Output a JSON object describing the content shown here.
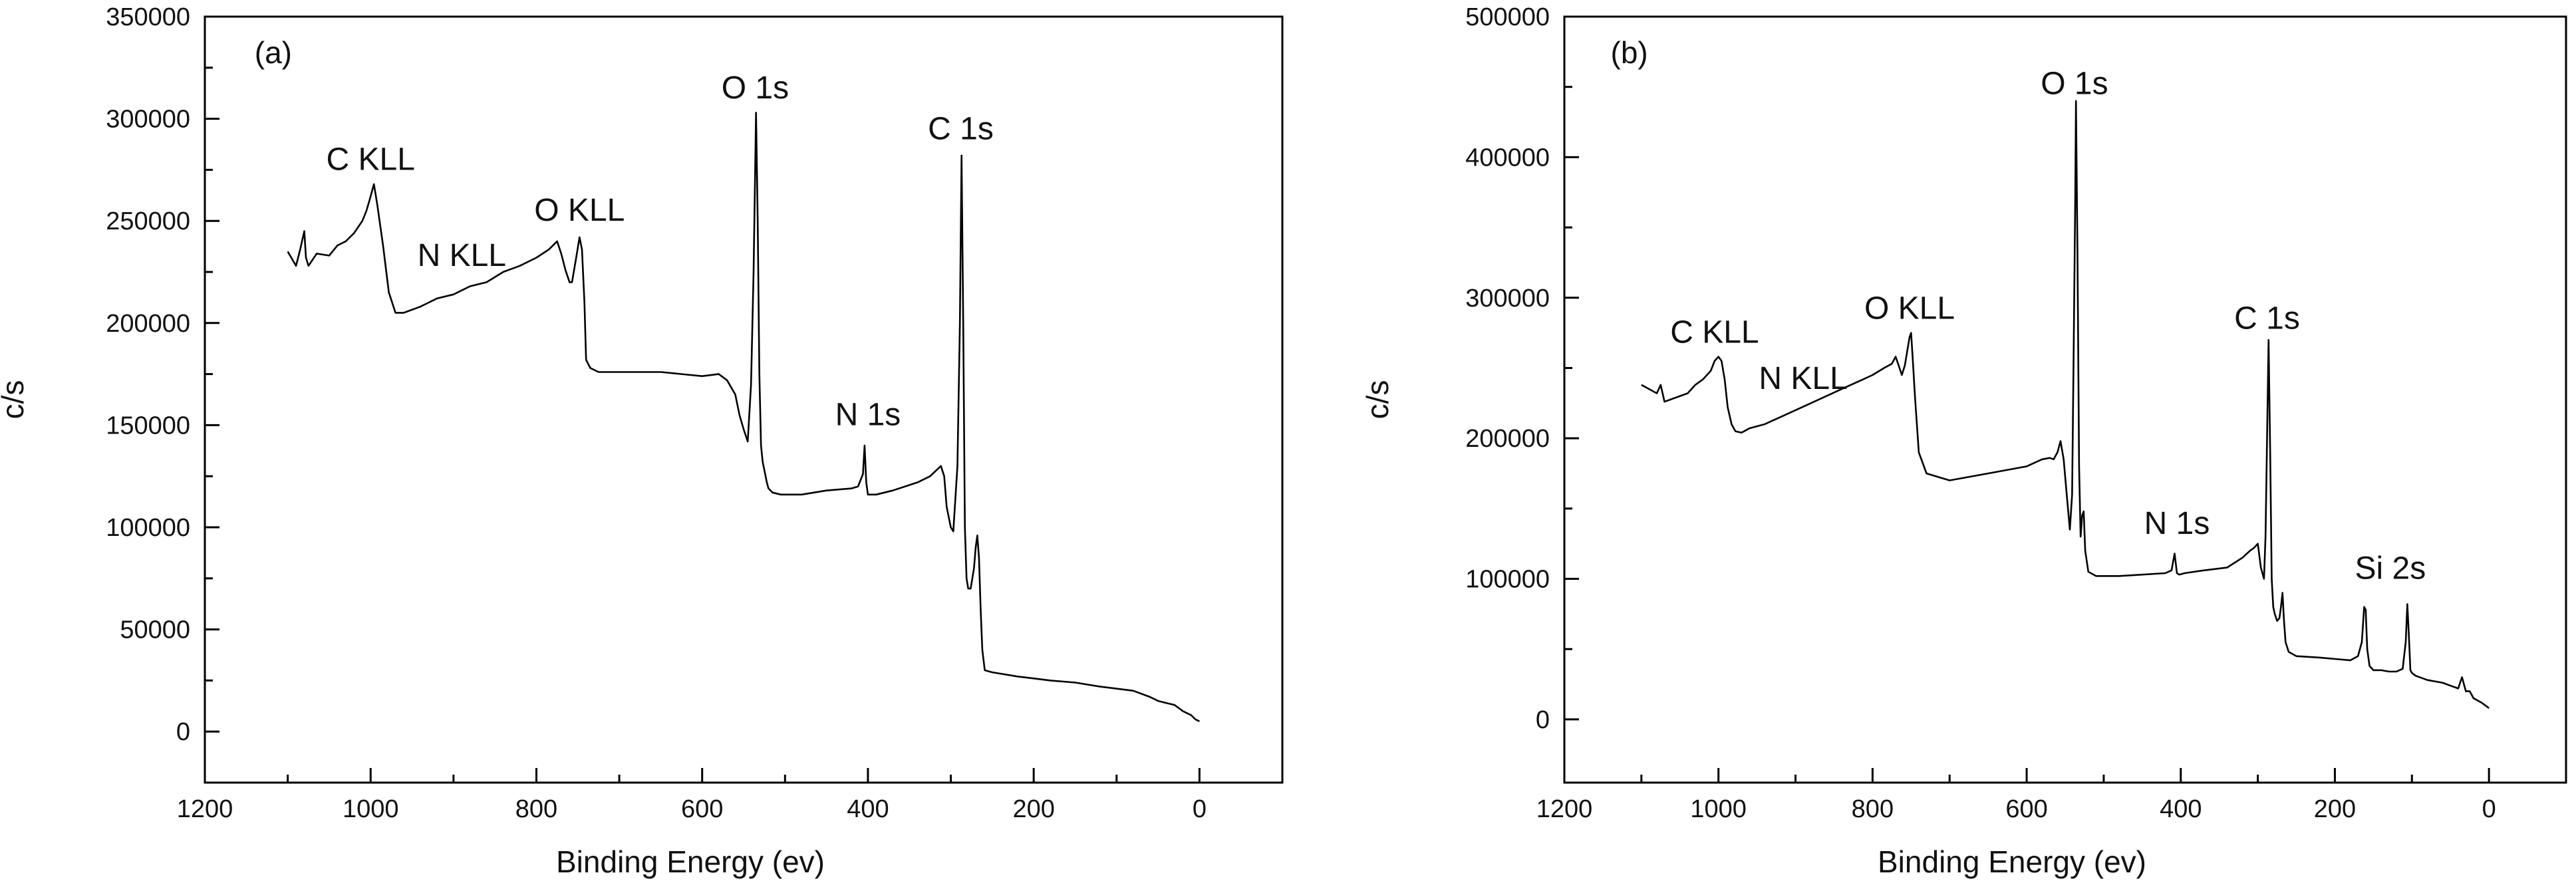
{
  "chart_data": [
    {
      "type": "line",
      "panel_label": "(a)",
      "xlabel": "Binding Energy (ev)",
      "ylabel": "c/s",
      "xlim": [
        1200,
        -100
      ],
      "ylim": [
        -25000,
        350000
      ],
      "xticks": [
        1200,
        1000,
        800,
        600,
        400,
        200,
        0
      ],
      "yticks": [
        0,
        50000,
        100000,
        150000,
        200000,
        250000,
        300000,
        350000
      ],
      "grid": false,
      "series": [
        {
          "x": [
            1100,
            1090,
            1085,
            1080,
            1078,
            1075,
            1065,
            1050,
            1040,
            1030,
            1020,
            1010,
            1005,
            1000,
            996,
            992,
            985,
            978,
            970,
            960,
            940,
            920,
            900,
            880,
            860,
            840,
            820,
            800,
            785,
            775,
            770,
            765,
            760,
            757,
            752,
            748,
            745,
            742,
            740,
            735,
            725,
            700,
            650,
            600,
            580,
            570,
            560,
            555,
            550,
            545,
            541,
            538,
            536,
            535,
            533,
            531,
            529,
            527,
            525,
            522,
            520,
            515,
            505,
            480,
            450,
            420,
            412,
            406,
            404,
            402,
            400,
            397,
            390,
            370,
            340,
            325,
            312,
            308,
            305,
            300,
            297,
            292,
            289,
            287,
            285,
            283,
            281,
            279,
            276,
            272,
            270,
            268,
            266,
            264,
            262,
            259,
            250,
            220,
            200,
            180,
            150,
            120,
            100,
            80,
            60,
            50,
            40,
            30,
            20,
            10,
            5,
            0
          ],
          "values": [
            235000,
            228000,
            236000,
            245000,
            232000,
            228000,
            234000,
            233000,
            238000,
            240000,
            244000,
            250000,
            255000,
            262000,
            268000,
            258000,
            238000,
            215000,
            205000,
            205000,
            208000,
            212000,
            214000,
            218000,
            220000,
            225000,
            228000,
            232000,
            236000,
            240000,
            234000,
            226000,
            220000,
            220000,
            232000,
            242000,
            236000,
            210000,
            182000,
            178000,
            176000,
            176000,
            176000,
            174000,
            175000,
            172000,
            165000,
            155000,
            148000,
            142000,
            170000,
            225000,
            275000,
            303000,
            250000,
            175000,
            140000,
            132000,
            128000,
            122000,
            119000,
            117000,
            116000,
            116000,
            118000,
            119000,
            120000,
            126000,
            140000,
            122000,
            116000,
            116000,
            116000,
            118000,
            122000,
            125000,
            130000,
            125000,
            110000,
            100000,
            98000,
            130000,
            200000,
            282000,
            200000,
            100000,
            75000,
            70000,
            70000,
            80000,
            90000,
            96000,
            85000,
            60000,
            40000,
            30000,
            29000,
            27000,
            26000,
            25000,
            24000,
            22000,
            21000,
            20000,
            17000,
            15000,
            14000,
            13000,
            10000,
            8000,
            6000,
            5000
          ]
        }
      ],
      "annotations": [
        {
          "text": "C KLL",
          "x": 1000,
          "y": 275000
        },
        {
          "text": "N KLL",
          "x": 890,
          "y": 228000
        },
        {
          "text": "O KLL",
          "x": 748,
          "y": 250000
        },
        {
          "text": "O 1s",
          "x": 536,
          "y": 310000
        },
        {
          "text": "N 1s",
          "x": 400,
          "y": 150000
        },
        {
          "text": "C 1s",
          "x": 288,
          "y": 290000
        }
      ]
    },
    {
      "type": "line",
      "panel_label": "(b)",
      "xlabel": "Binding Energy (ev)",
      "ylabel": "c/s",
      "xlim": [
        1200,
        -100
      ],
      "ylim": [
        -45000,
        500000
      ],
      "xticks": [
        1200,
        1000,
        800,
        600,
        400,
        200,
        0
      ],
      "yticks": [
        0,
        100000,
        200000,
        300000,
        400000,
        500000
      ],
      "grid": false,
      "series": [
        {
          "x": [
            1100,
            1090,
            1080,
            1075,
            1070,
            1060,
            1040,
            1030,
            1020,
            1010,
            1005,
            1000,
            996,
            992,
            988,
            983,
            978,
            970,
            960,
            940,
            920,
            900,
            880,
            860,
            840,
            820,
            800,
            785,
            775,
            770,
            765,
            762,
            758,
            755,
            752,
            750,
            748,
            745,
            740,
            730,
            700,
            650,
            600,
            580,
            570,
            565,
            560,
            556,
            552,
            548,
            544,
            541,
            539,
            537,
            536,
            534,
            532,
            530,
            528,
            526,
            524,
            520,
            510,
            480,
            450,
            420,
            412,
            408,
            405,
            402,
            395,
            370,
            340,
            320,
            310,
            305,
            300,
            296,
            292,
            290,
            288,
            286,
            284,
            282,
            280,
            278,
            275,
            272,
            270,
            268,
            266,
            264,
            260,
            250,
            220,
            200,
            180,
            170,
            165,
            162,
            160,
            158,
            155,
            150,
            140,
            130,
            120,
            112,
            108,
            106,
            104,
            102,
            100,
            95,
            80,
            60,
            40,
            35,
            30,
            25,
            20,
            10,
            5,
            0
          ],
          "values": [
            238000,
            235000,
            232000,
            238000,
            226000,
            228000,
            232000,
            238000,
            242000,
            248000,
            255000,
            258000,
            255000,
            242000,
            222000,
            210000,
            205000,
            204000,
            207000,
            210000,
            215000,
            220000,
            225000,
            230000,
            235000,
            240000,
            245000,
            250000,
            253000,
            258000,
            250000,
            245000,
            252000,
            262000,
            272000,
            275000,
            258000,
            230000,
            190000,
            175000,
            170000,
            175000,
            180000,
            185000,
            186000,
            185000,
            190000,
            198000,
            185000,
            160000,
            135000,
            160000,
            260000,
            370000,
            440000,
            330000,
            180000,
            130000,
            145000,
            148000,
            120000,
            105000,
            102000,
            102000,
            103000,
            104000,
            106000,
            118000,
            104000,
            103000,
            104000,
            106000,
            108000,
            115000,
            120000,
            122000,
            125000,
            108000,
            100000,
            130000,
            200000,
            270000,
            190000,
            100000,
            80000,
            75000,
            70000,
            72000,
            80000,
            90000,
            70000,
            55000,
            48000,
            45000,
            44000,
            43000,
            42000,
            45000,
            55000,
            80000,
            78000,
            50000,
            38000,
            35000,
            35000,
            34000,
            34000,
            36000,
            55000,
            82000,
            60000,
            35000,
            33000,
            31000,
            28000,
            26000,
            22000,
            30000,
            20000,
            20000,
            15000,
            12000,
            10000,
            8000
          ]
        }
      ],
      "annotations": [
        {
          "text": "C KLL",
          "x": 1005,
          "y": 268000
        },
        {
          "text": "N KLL",
          "x": 890,
          "y": 235000
        },
        {
          "text": "O KLL",
          "x": 752,
          "y": 285000
        },
        {
          "text": "O 1s",
          "x": 538,
          "y": 445000
        },
        {
          "text": "C 1s",
          "x": 288,
          "y": 278000
        },
        {
          "text": "N 1s",
          "x": 405,
          "y": 132000
        },
        {
          "text": "Si 2s",
          "x": 128,
          "y": 100000
        }
      ]
    }
  ]
}
